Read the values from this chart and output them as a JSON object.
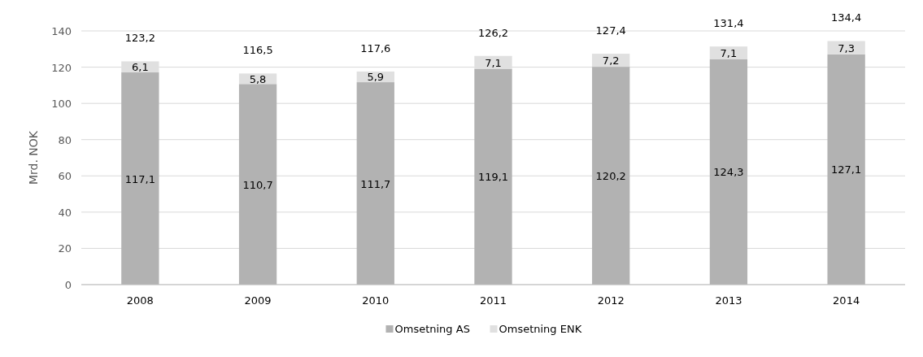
{
  "chart_data": {
    "type": "bar",
    "stacked": true,
    "ylabel": "Mrd. NOK",
    "categories": [
      "2008",
      "2009",
      "2010",
      "2011",
      "2012",
      "2013",
      "2014"
    ],
    "series": [
      {
        "name": "Omsetning AS",
        "color": "#b2b2b2",
        "values": [
          117.1,
          110.7,
          111.7,
          119.1,
          120.2,
          124.3,
          127.1
        ],
        "value_labels": [
          "117,1",
          "110,7",
          "111,7",
          "119,1",
          "120,2",
          "124,3",
          "127,1"
        ]
      },
      {
        "name": "Omsetning ENK",
        "color": "#e0e0e0",
        "values": [
          6.1,
          5.8,
          5.9,
          7.1,
          7.2,
          7.1,
          7.3
        ],
        "value_labels": [
          "6,1",
          "5,8",
          "5,9",
          "7,1",
          "7,2",
          "7,1",
          "7,3"
        ]
      }
    ],
    "totals": [
      "123,2",
      "116,5",
      "117,6",
      "126,2",
      "127,4",
      "131,4",
      "134,4"
    ],
    "ylim": [
      0,
      140
    ],
    "yticks": [
      0,
      20,
      40,
      60,
      80,
      100,
      120,
      140
    ],
    "grid": "y",
    "legend": "bottom"
  }
}
